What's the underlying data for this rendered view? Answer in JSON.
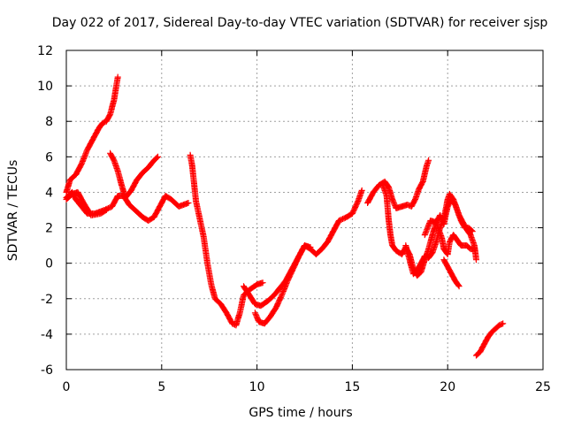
{
  "chart_data": {
    "type": "scatter",
    "title": "Day 022 of 2017, Sidereal Day-to-day VTEC variation (SDTVAR) for receiver sjsp",
    "xlabel": "GPS time / hours",
    "ylabel": "SDTVAR / TECUs",
    "xlim": [
      0,
      25
    ],
    "ylim": [
      -6,
      12
    ],
    "x_ticks": [
      "0",
      "5",
      "10",
      "15",
      "20",
      "25"
    ],
    "y_ticks": [
      "-6",
      "-4",
      "-2",
      "0",
      "2",
      "4",
      "6",
      "8",
      "10",
      "12"
    ],
    "grid": true,
    "marker": "plus",
    "series_color": "#ff0000",
    "segments": [
      {
        "points": [
          [
            0.0,
            4.0
          ],
          [
            0.2,
            4.7
          ],
          [
            0.5,
            5.0
          ],
          [
            0.8,
            5.6
          ],
          [
            1.1,
            6.4
          ],
          [
            1.4,
            7.0
          ],
          [
            1.7,
            7.6
          ],
          [
            1.9,
            7.9
          ],
          [
            2.1,
            8.0
          ],
          [
            2.3,
            8.4
          ],
          [
            2.5,
            9.2
          ],
          [
            2.7,
            10.5
          ]
        ]
      },
      {
        "points": [
          [
            0.0,
            3.7
          ],
          [
            0.3,
            4.0
          ],
          [
            0.5,
            3.6
          ],
          [
            0.8,
            3.2
          ],
          [
            1.1,
            2.8
          ],
          [
            1.5,
            2.8
          ],
          [
            2.0,
            3.0
          ],
          [
            2.4,
            3.2
          ],
          [
            2.7,
            3.8
          ],
          [
            3.0,
            3.8
          ],
          [
            3.3,
            3.3
          ],
          [
            3.6,
            3.0
          ],
          [
            4.0,
            2.6
          ],
          [
            4.3,
            2.4
          ],
          [
            4.6,
            2.6
          ],
          [
            4.9,
            3.2
          ],
          [
            5.2,
            3.8
          ],
          [
            5.5,
            3.6
          ],
          [
            5.9,
            3.2
          ],
          [
            6.4,
            3.4
          ]
        ]
      },
      {
        "points": [
          [
            0.0,
            3.6
          ],
          [
            0.3,
            3.9
          ],
          [
            0.6,
            4.0
          ],
          [
            0.9,
            3.4
          ],
          [
            1.3,
            2.7
          ],
          [
            1.8,
            2.8
          ],
          [
            2.1,
            3.0
          ]
        ]
      },
      {
        "points": [
          [
            2.3,
            6.2
          ],
          [
            2.5,
            5.8
          ],
          [
            2.7,
            5.2
          ],
          [
            2.9,
            4.4
          ],
          [
            3.1,
            3.7
          ],
          [
            3.4,
            4.1
          ],
          [
            3.7,
            4.7
          ],
          [
            4.0,
            5.1
          ],
          [
            4.3,
            5.4
          ],
          [
            4.6,
            5.8
          ],
          [
            4.8,
            6.0
          ]
        ]
      },
      {
        "points": [
          [
            6.5,
            6.1
          ],
          [
            6.6,
            5.5
          ],
          [
            6.7,
            4.5
          ],
          [
            6.8,
            3.5
          ],
          [
            7.0,
            2.5
          ],
          [
            7.2,
            1.5
          ],
          [
            7.4,
            0.0
          ],
          [
            7.6,
            -1.2
          ],
          [
            7.8,
            -2.0
          ],
          [
            8.1,
            -2.3
          ],
          [
            8.4,
            -2.8
          ],
          [
            8.7,
            -3.4
          ],
          [
            8.9,
            -3.5
          ],
          [
            9.1,
            -2.8
          ],
          [
            9.3,
            -1.8
          ],
          [
            9.6,
            -1.5
          ],
          [
            10.0,
            -1.2
          ],
          [
            10.3,
            -1.1
          ]
        ]
      },
      {
        "points": [
          [
            9.3,
            -1.3
          ],
          [
            9.6,
            -1.8
          ],
          [
            9.9,
            -2.3
          ],
          [
            10.2,
            -2.4
          ],
          [
            10.6,
            -2.1
          ],
          [
            10.9,
            -1.8
          ],
          [
            11.2,
            -1.4
          ],
          [
            11.5,
            -1.0
          ],
          [
            11.8,
            -0.4
          ],
          [
            12.0,
            0.0
          ],
          [
            12.3,
            0.6
          ],
          [
            12.5,
            1.0
          ],
          [
            12.8,
            0.8
          ],
          [
            13.1,
            0.5
          ],
          [
            13.4,
            0.8
          ],
          [
            13.7,
            1.2
          ],
          [
            14.0,
            1.8
          ],
          [
            14.3,
            2.4
          ],
          [
            14.7,
            2.6
          ],
          [
            15.0,
            2.8
          ],
          [
            15.3,
            3.5
          ],
          [
            15.5,
            4.1
          ]
        ]
      },
      {
        "points": [
          [
            9.9,
            -2.8
          ],
          [
            10.1,
            -3.3
          ],
          [
            10.4,
            -3.4
          ],
          [
            10.7,
            -3.0
          ],
          [
            11.0,
            -2.5
          ],
          [
            11.3,
            -1.8
          ],
          [
            11.6,
            -1.0
          ],
          [
            11.9,
            -0.3
          ],
          [
            12.2,
            0.4
          ],
          [
            12.5,
            1.0
          ],
          [
            12.8,
            0.9
          ]
        ]
      },
      {
        "points": [
          [
            15.8,
            3.4
          ],
          [
            16.1,
            4.0
          ],
          [
            16.4,
            4.4
          ],
          [
            16.7,
            4.6
          ],
          [
            16.9,
            4.3
          ],
          [
            17.1,
            3.6
          ],
          [
            17.3,
            3.1
          ],
          [
            17.6,
            3.2
          ],
          [
            17.9,
            3.3
          ],
          [
            18.1,
            3.2
          ],
          [
            18.3,
            3.6
          ],
          [
            18.5,
            4.2
          ],
          [
            18.7,
            4.6
          ],
          [
            18.9,
            5.5
          ],
          [
            19.0,
            5.8
          ]
        ]
      },
      {
        "points": [
          [
            16.6,
            4.4
          ],
          [
            16.8,
            3.8
          ],
          [
            16.9,
            2.5
          ],
          [
            17.0,
            1.6
          ],
          [
            17.1,
            1.0
          ],
          [
            17.3,
            0.7
          ],
          [
            17.6,
            0.5
          ],
          [
            17.8,
            0.9
          ],
          [
            18.0,
            0.5
          ],
          [
            18.2,
            -0.3
          ],
          [
            18.4,
            -0.7
          ],
          [
            18.6,
            -0.5
          ],
          [
            18.8,
            0.2
          ],
          [
            19.0,
            0.8
          ],
          [
            19.2,
            1.6
          ],
          [
            19.4,
            2.3
          ],
          [
            19.6,
            2.7
          ],
          [
            19.8,
            2.2
          ],
          [
            20.0,
            3.2
          ],
          [
            20.2,
            3.6
          ],
          [
            20.4,
            3.3
          ],
          [
            20.6,
            2.7
          ],
          [
            20.8,
            2.3
          ],
          [
            21.0,
            1.9
          ],
          [
            21.2,
            1.6
          ],
          [
            21.4,
            1.0
          ],
          [
            21.5,
            0.2
          ]
        ]
      },
      {
        "points": [
          [
            17.8,
            1.0
          ],
          [
            18.0,
            0.2
          ],
          [
            18.2,
            -0.6
          ],
          [
            18.4,
            -0.4
          ],
          [
            18.6,
            0.0
          ],
          [
            18.8,
            0.4
          ],
          [
            19.0,
            0.3
          ],
          [
            19.2,
            0.6
          ],
          [
            19.4,
            1.2
          ],
          [
            19.6,
            2.0
          ],
          [
            19.8,
            2.5
          ],
          [
            20.0,
            3.6
          ],
          [
            20.1,
            3.9
          ],
          [
            20.3,
            3.6
          ],
          [
            20.5,
            3.0
          ],
          [
            20.7,
            2.4
          ],
          [
            20.9,
            2.0
          ],
          [
            21.1,
            2.0
          ],
          [
            21.3,
            1.8
          ]
        ]
      },
      {
        "points": [
          [
            18.8,
            1.6
          ],
          [
            19.1,
            2.4
          ],
          [
            19.4,
            2.3
          ],
          [
            19.7,
            1.4
          ],
          [
            19.8,
            0.8
          ],
          [
            20.0,
            0.5
          ],
          [
            20.1,
            1.2
          ],
          [
            20.3,
            1.6
          ],
          [
            20.5,
            1.3
          ],
          [
            20.7,
            1.0
          ],
          [
            21.0,
            1.0
          ],
          [
            21.2,
            0.8
          ],
          [
            21.4,
            0.8
          ]
        ]
      },
      {
        "points": [
          [
            19.8,
            0.2
          ],
          [
            20.0,
            -0.2
          ],
          [
            20.2,
            -0.6
          ],
          [
            20.4,
            -1.0
          ],
          [
            20.6,
            -1.3
          ]
        ]
      },
      {
        "points": [
          [
            21.5,
            -5.2
          ],
          [
            21.7,
            -5.0
          ],
          [
            21.9,
            -4.6
          ],
          [
            22.1,
            -4.2
          ],
          [
            22.3,
            -3.9
          ],
          [
            22.5,
            -3.7
          ],
          [
            22.7,
            -3.5
          ],
          [
            22.9,
            -3.4
          ]
        ]
      }
    ]
  }
}
